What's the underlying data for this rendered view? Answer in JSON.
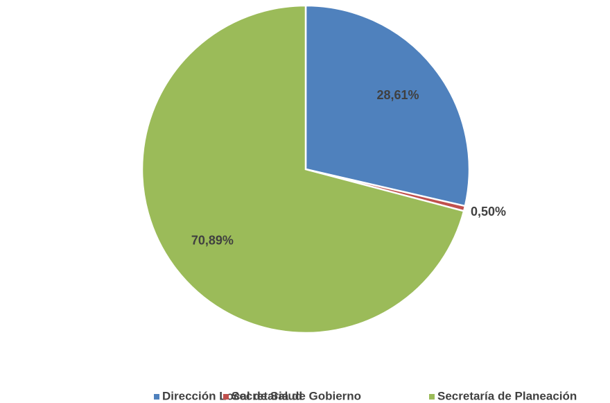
{
  "chart_data": {
    "type": "pie",
    "categories": [
      "Dirección Local de Salud",
      "Secretaria de Gobierno",
      "Secretaría de Planeación"
    ],
    "values": [
      28.61,
      0.5,
      70.89
    ],
    "value_labels": [
      "28,61%",
      "0,50%",
      "70,89%"
    ],
    "colors": [
      "#4f81bd",
      "#c0504d",
      "#9bbb59"
    ],
    "legend": "bottom"
  }
}
